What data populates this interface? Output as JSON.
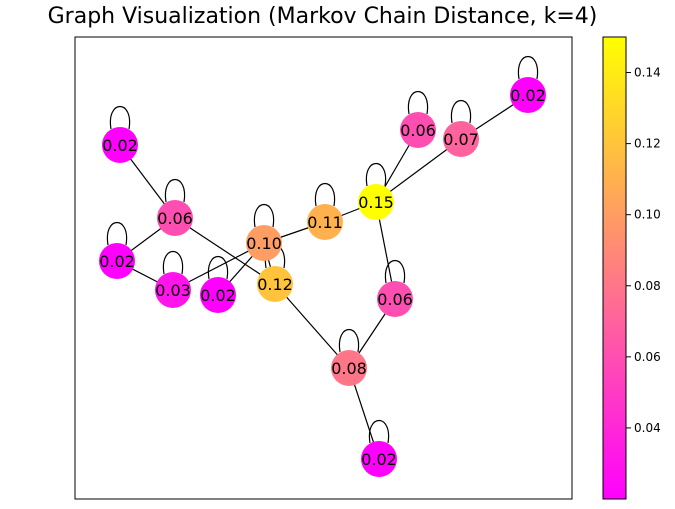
{
  "title": "Graph Visualization (Markov Chain Distance, k=4)",
  "colormap": {
    "name": "spring",
    "min": 0.02,
    "max": 0.15,
    "low_color": "#ff00ff",
    "high_color": "#ffff00"
  },
  "colorbar": {
    "ticks": [
      "0.04",
      "0.06",
      "0.08",
      "0.10",
      "0.12",
      "0.14"
    ]
  },
  "graph": {
    "nodes": [
      {
        "id": "n1",
        "label": "0.02",
        "value": 0.02,
        "self_loop": true
      },
      {
        "id": "n2",
        "label": "0.06",
        "value": 0.06,
        "self_loop": true
      },
      {
        "id": "n3",
        "label": "0.02",
        "value": 0.02,
        "self_loop": true
      },
      {
        "id": "n4",
        "label": "0.03",
        "value": 0.03,
        "self_loop": true
      },
      {
        "id": "n5",
        "label": "0.02",
        "value": 0.02,
        "self_loop": true
      },
      {
        "id": "n6",
        "label": "0.10",
        "value": 0.1,
        "self_loop": true
      },
      {
        "id": "n7",
        "label": "0.12",
        "value": 0.12,
        "self_loop": true
      },
      {
        "id": "n8",
        "label": "0.11",
        "value": 0.11,
        "self_loop": true
      },
      {
        "id": "n9",
        "label": "0.15",
        "value": 0.15,
        "self_loop": true
      },
      {
        "id": "n10",
        "label": "0.06",
        "value": 0.06,
        "self_loop": true
      },
      {
        "id": "n11",
        "label": "0.07",
        "value": 0.07,
        "self_loop": true
      },
      {
        "id": "n12",
        "label": "0.02",
        "value": 0.02,
        "self_loop": true
      },
      {
        "id": "n13",
        "label": "0.06",
        "value": 0.06,
        "self_loop": true
      },
      {
        "id": "n14",
        "label": "0.08",
        "value": 0.08,
        "self_loop": true
      },
      {
        "id": "n15",
        "label": "0.02",
        "value": 0.02,
        "self_loop": true
      }
    ],
    "edges": [
      [
        "n1",
        "n2"
      ],
      [
        "n2",
        "n3"
      ],
      [
        "n2",
        "n7"
      ],
      [
        "n3",
        "n4"
      ],
      [
        "n4",
        "n6"
      ],
      [
        "n5",
        "n6"
      ],
      [
        "n6",
        "n7"
      ],
      [
        "n6",
        "n8"
      ],
      [
        "n7",
        "n14"
      ],
      [
        "n8",
        "n9"
      ],
      [
        "n9",
        "n10"
      ],
      [
        "n9",
        "n11"
      ],
      [
        "n11",
        "n12"
      ],
      [
        "n9",
        "n13"
      ],
      [
        "n13",
        "n14"
      ],
      [
        "n14",
        "n15"
      ]
    ]
  }
}
